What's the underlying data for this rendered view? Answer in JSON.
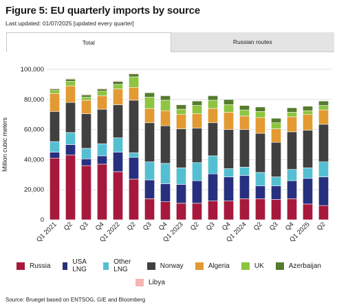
{
  "header": {
    "title": "Figure 5: EU quarterly imports by source",
    "subtitle": "Last updated: 01/07/2025 [updated every quarter]"
  },
  "tabs": [
    {
      "label": "Total",
      "active": true
    },
    {
      "label": "Russian routes",
      "active": false
    }
  ],
  "source": "Source: Bruegel based on ENTSOG, GIE and Bloomberg",
  "chart_data": {
    "type": "bar",
    "stacked": true,
    "ylabel": "Million cubic meters",
    "ylim": [
      0,
      100000
    ],
    "yticks": [
      0,
      20000,
      40000,
      60000,
      80000,
      100000
    ],
    "ytick_labels": [
      "0",
      "20,000",
      "40,000",
      "60,000",
      "80,000",
      "100,000"
    ],
    "grid": true,
    "legend_position": "bottom",
    "categories": [
      "Q1 2021",
      "Q2",
      "Q3",
      "Q4",
      "Q1 2022",
      "Q2",
      "Q3",
      "Q4",
      "Q1 2023",
      "Q2",
      "Q3",
      "Q4",
      "Q1 2024",
      "Q2",
      "Q3",
      "Q4",
      "Q1 2025",
      "Q2"
    ],
    "series": [
      {
        "name": "Russia",
        "color": "#a6193c",
        "values": [
          41000,
          43000,
          36000,
          37000,
          32000,
          27000,
          14000,
          12000,
          11000,
          11000,
          12500,
          12500,
          14000,
          14000,
          13500,
          14000,
          10500,
          9500
        ]
      },
      {
        "name": "USA LNG",
        "color": "#27307f",
        "values": [
          4000,
          7000,
          4500,
          5500,
          13000,
          14500,
          12500,
          12000,
          12500,
          15000,
          18000,
          16000,
          15500,
          8500,
          9000,
          12000,
          17000,
          19000
        ]
      },
      {
        "name": "Other LNG",
        "color": "#55bfd2",
        "values": [
          7000,
          8000,
          7000,
          8000,
          9500,
          3000,
          12000,
          13500,
          11000,
          12000,
          12000,
          5500,
          5500,
          9000,
          6000,
          7500,
          7000,
          10000
        ]
      },
      {
        "name": "Norway",
        "color": "#404040",
        "values": [
          20000,
          20000,
          23000,
          23000,
          22000,
          35000,
          26000,
          25000,
          26000,
          23000,
          22000,
          26000,
          25000,
          26000,
          23000,
          25000,
          25000,
          25000
        ]
      },
      {
        "name": "Algeria",
        "color": "#e39a32",
        "values": [
          12000,
          11000,
          9000,
          9000,
          10500,
          8500,
          9500,
          10000,
          9500,
          9500,
          9500,
          11500,
          9000,
          10500,
          9000,
          10000,
          10500,
          9500
        ]
      },
      {
        "name": "UK",
        "color": "#8dc540",
        "values": [
          2000,
          3000,
          2000,
          3000,
          3000,
          7000,
          7500,
          7000,
          3500,
          5500,
          5500,
          5000,
          4000,
          4000,
          4000,
          3000,
          2500,
          3000
        ]
      },
      {
        "name": "Azerbaijan",
        "color": "#557c2d",
        "values": [
          1000,
          1500,
          1500,
          1500,
          2000,
          2000,
          3000,
          3000,
          3000,
          3000,
          3000,
          3500,
          3000,
          3000,
          3000,
          3000,
          3000,
          3000
        ]
      },
      {
        "name": "Libya",
        "color": "#f4b6b4",
        "values": [
          500,
          500,
          500,
          500,
          500,
          500,
          300,
          300,
          300,
          300,
          300,
          300,
          300,
          300,
          300,
          300,
          300,
          300
        ]
      }
    ]
  }
}
